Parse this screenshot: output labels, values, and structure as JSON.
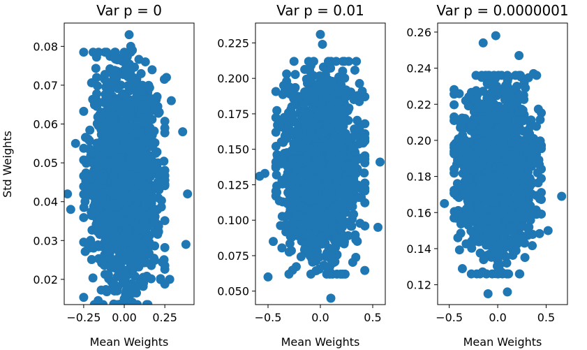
{
  "chart_data": [
    {
      "type": "scatter",
      "title": "Var p = 0",
      "xlabel": "Mean Weights",
      "ylabel": "Std Weights",
      "xlim": [
        -0.37,
        0.43
      ],
      "ylim": [
        0.0135,
        0.086
      ],
      "xticks": [
        -0.25,
        0.0,
        0.25
      ],
      "xtick_labels": [
        "−0.25",
        "0.00",
        "0.25"
      ],
      "yticks": [
        0.02,
        0.03,
        0.04,
        0.05,
        0.06,
        0.07,
        0.08
      ],
      "ytick_labels": [
        "0.02",
        "0.03",
        "0.04",
        "0.05",
        "0.06",
        "0.07",
        "0.08"
      ],
      "color": "#1f77b4",
      "cloud": {
        "center": [
          0.0,
          0.046
        ],
        "spread": [
          0.1,
          0.013
        ],
        "count": 1800
      },
      "points": [
        {
          "x": 0.03,
          "y": 0.083
        },
        {
          "x": 0.04,
          "y": 0.08
        },
        {
          "x": 0.05,
          "y": 0.079
        },
        {
          "x": -0.06,
          "y": 0.077
        },
        {
          "x": 0.13,
          "y": 0.076
        },
        {
          "x": 0.26,
          "y": 0.072
        },
        {
          "x": -0.17,
          "y": 0.072
        },
        {
          "x": 0.29,
          "y": 0.066
        },
        {
          "x": 0.36,
          "y": 0.058
        },
        {
          "x": 0.39,
          "y": 0.042
        },
        {
          "x": -0.35,
          "y": 0.042
        },
        {
          "x": -0.3,
          "y": 0.055
        },
        {
          "x": 0.38,
          "y": 0.029
        },
        {
          "x": -0.22,
          "y": 0.028
        },
        {
          "x": 0.0,
          "y": 0.015
        },
        {
          "x": -0.06,
          "y": 0.017
        },
        {
          "x": 0.28,
          "y": 0.02
        },
        {
          "x": -0.33,
          "y": 0.038
        }
      ]
    },
    {
      "type": "scatter",
      "title": "Var p = 0.01",
      "xlabel": "Mean Weights",
      "ylabel": "",
      "xlim": [
        -0.62,
        0.62
      ],
      "ylim": [
        0.0405,
        0.239
      ],
      "xticks": [
        -0.5,
        0.0,
        0.5
      ],
      "xtick_labels": [
        "−0.5",
        "0.0",
        "0.5"
      ],
      "yticks": [
        0.05,
        0.075,
        0.1,
        0.125,
        0.15,
        0.175,
        0.2,
        0.225
      ],
      "ytick_labels": [
        "0.050",
        "0.075",
        "0.100",
        "0.125",
        "0.150",
        "0.175",
        "0.200",
        "0.225"
      ],
      "color": "#1f77b4",
      "cloud": {
        "center": [
          0.0,
          0.137
        ],
        "spread": [
          0.17,
          0.03
        ],
        "count": 1800
      },
      "points": [
        {
          "x": 0.0,
          "y": 0.231
        },
        {
          "x": 0.02,
          "y": 0.224
        },
        {
          "x": -0.53,
          "y": 0.133
        },
        {
          "x": -0.58,
          "y": 0.131
        },
        {
          "x": 0.57,
          "y": 0.141
        },
        {
          "x": -0.45,
          "y": 0.085
        },
        {
          "x": 0.1,
          "y": 0.045
        },
        {
          "x": 0.4,
          "y": 0.191
        },
        {
          "x": -0.35,
          "y": 0.195
        },
        {
          "x": 0.55,
          "y": 0.095
        },
        {
          "x": -0.3,
          "y": 0.062
        },
        {
          "x": -0.5,
          "y": 0.06
        }
      ]
    },
    {
      "type": "scatter",
      "title": "Var p = 0.0000001",
      "xlabel": "Mean Weights",
      "ylabel": "",
      "xlim": [
        -0.62,
        0.72
      ],
      "ylim": [
        0.109,
        0.265
      ],
      "xticks": [
        -0.5,
        0.0,
        0.5
      ],
      "xtick_labels": [
        "−0.5",
        "0.0",
        "0.5"
      ],
      "yticks": [
        0.12,
        0.14,
        0.16,
        0.18,
        0.2,
        0.22,
        0.24,
        0.26
      ],
      "ytick_labels": [
        "0.12",
        "0.14",
        "0.16",
        "0.18",
        "0.20",
        "0.22",
        "0.24",
        "0.26"
      ],
      "color": "#1f77b4",
      "cloud": {
        "center": [
          0.0,
          0.181
        ],
        "spread": [
          0.18,
          0.022
        ],
        "count": 1800
      },
      "points": [
        {
          "x": -0.02,
          "y": 0.258
        },
        {
          "x": -0.15,
          "y": 0.254
        },
        {
          "x": 0.22,
          "y": 0.247
        },
        {
          "x": 0.37,
          "y": 0.237
        },
        {
          "x": -0.45,
          "y": 0.213
        },
        {
          "x": 0.66,
          "y": 0.169
        },
        {
          "x": -0.55,
          "y": 0.165
        },
        {
          "x": -0.45,
          "y": 0.157
        },
        {
          "x": -0.1,
          "y": 0.115
        },
        {
          "x": 0.1,
          "y": 0.116
        },
        {
          "x": -0.33,
          "y": 0.222
        },
        {
          "x": 0.52,
          "y": 0.15
        }
      ]
    }
  ]
}
